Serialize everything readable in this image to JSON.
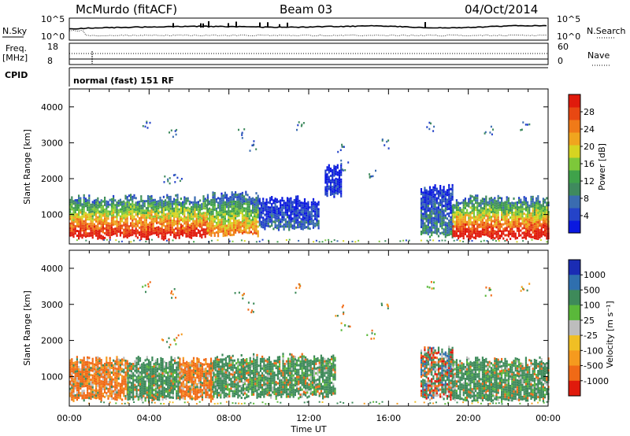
{
  "header": {
    "station": "McMurdo (fitACF)",
    "beam": "Beam 03",
    "date": "04/Oct/2014",
    "nsky_label": "N.Sky",
    "nsearch_label": "N.Search",
    "freq_label": "Freq.",
    "freq_unit": "[MHz]",
    "nave_label": "Nave",
    "cpid_label": "CPID",
    "cpid_value": "normal (fast) 151 RF",
    "noise_ticks": [
      "10^5",
      "10^0"
    ],
    "freq_ticks": [
      "18",
      "8"
    ],
    "nave_ticks": [
      "60",
      "0"
    ]
  },
  "chart_data": [
    {
      "type": "heatmap",
      "panel": "power",
      "ylabel": "Slant Range [km]",
      "xlabel": "Time UT",
      "x_ticks": [
        "00:00",
        "04:00",
        "08:00",
        "12:00",
        "16:00",
        "20:00",
        "00:00"
      ],
      "y_ticks": [
        1000,
        2000,
        3000,
        4000
      ],
      "xlim_hours": [
        0,
        24
      ],
      "ylim_km": [
        180,
        4500
      ],
      "colorbar": {
        "label": "Power [dB]",
        "ticks": [
          "4",
          "8",
          "12",
          "16",
          "20",
          "24",
          "28"
        ],
        "colors": [
          "#0a18e0",
          "#2443c8",
          "#3a6cb0",
          "#3f8a5e",
          "#3fa24a",
          "#7dc83a",
          "#d6d421",
          "#f0a51e",
          "#f07a18",
          "#e84812",
          "#e01a0c"
        ]
      },
      "regions": [
        {
          "t0": 0.0,
          "t1": 6.9,
          "r0": 390,
          "r1": 1470,
          "peak": 0.92
        },
        {
          "t0": 6.9,
          "t1": 9.5,
          "r0": 470,
          "r1": 1550,
          "peak": 0.7
        },
        {
          "t0": 9.5,
          "t1": 12.5,
          "r0": 640,
          "r1": 1430,
          "peak": 0.2
        },
        {
          "t0": 12.8,
          "t1": 13.6,
          "r0": 1550,
          "r1": 2300,
          "peak": 0.1
        },
        {
          "t0": 17.6,
          "t1": 19.2,
          "r0": 430,
          "r1": 1750,
          "peak": 0.28
        },
        {
          "t0": 19.2,
          "t1": 24.0,
          "r0": 370,
          "r1": 1450,
          "peak": 0.95
        }
      ]
    },
    {
      "type": "heatmap",
      "panel": "velocity",
      "ylabel": "Slant Range [km]",
      "xlabel": "Time UT",
      "x_ticks": [
        "00:00",
        "04:00",
        "08:00",
        "12:00",
        "16:00",
        "20:00",
        "00:00"
      ],
      "y_ticks": [
        1000,
        2000,
        3000,
        4000
      ],
      "xlim_hours": [
        0,
        24
      ],
      "ylim_km": [
        180,
        4500
      ],
      "colorbar": {
        "label": "Velocity [m s⁻¹]",
        "ticks": [
          "1000",
          "500",
          "100",
          "25",
          "-25",
          "-100",
          "-500",
          "-1000"
        ],
        "colors": [
          "#1a2cb4",
          "#2f6fae",
          "#3e8a5a",
          "#5ab83a",
          "#bdbdbd",
          "#f0bf24",
          "#f59a1e",
          "#f06a16",
          "#e01a0c"
        ]
      },
      "regions": [
        {
          "t0": 0.0,
          "t1": 2.9,
          "r0": 390,
          "r1": 1470,
          "dominant": "orange"
        },
        {
          "t0": 2.9,
          "t1": 5.5,
          "r0": 390,
          "r1": 1470,
          "dominant": "green"
        },
        {
          "t0": 5.5,
          "t1": 7.2,
          "r0": 390,
          "r1": 1470,
          "dominant": "orange"
        },
        {
          "t0": 7.2,
          "t1": 13.3,
          "r0": 470,
          "r1": 1550,
          "dominant": "green"
        },
        {
          "t0": 17.6,
          "t1": 19.2,
          "r0": 430,
          "r1": 1750,
          "dominant": "mixed"
        },
        {
          "t0": 19.2,
          "t1": 24.0,
          "r0": 370,
          "r1": 1450,
          "dominant": "green"
        }
      ]
    }
  ]
}
